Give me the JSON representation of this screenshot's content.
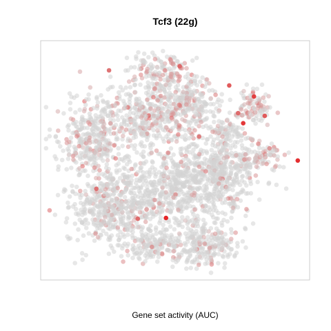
{
  "chart_data": {
    "type": "scatter",
    "title": "Tcf3 (22g)",
    "xlabel": "Gene set activity (AUC)",
    "ylabel": "",
    "xlim": [
      0,
      100
    ],
    "ylim": [
      0,
      100
    ],
    "axes_visible": false,
    "grid": false,
    "legend": "none",
    "color_scale": {
      "low": "#d3d3d3",
      "high": "#e41a1c",
      "meaning": "Gene set activity (AUC)"
    },
    "points_note": "t-SNE embedding of cells; estimated from image",
    "clusters": [
      {
        "cx": 27,
        "cy": 70,
        "rx": 16,
        "ry": 14,
        "activity": 0.12
      },
      {
        "cx": 42,
        "cy": 85,
        "rx": 11,
        "ry": 7,
        "activity": 0.1
      },
      {
        "cx": 62,
        "cy": 85,
        "rx": 12,
        "ry": 9,
        "activity": 0.15
      },
      {
        "cx": 50,
        "cy": 60,
        "rx": 20,
        "ry": 15,
        "activity": 0.08
      },
      {
        "cx": 68,
        "cy": 55,
        "rx": 11,
        "ry": 15,
        "activity": 0.1
      },
      {
        "cx": 20,
        "cy": 40,
        "rx": 12,
        "ry": 13,
        "activity": 0.22
      },
      {
        "cx": 40,
        "cy": 30,
        "rx": 15,
        "ry": 12,
        "activity": 0.2
      },
      {
        "cx": 56,
        "cy": 28,
        "rx": 9,
        "ry": 11,
        "activity": 0.25
      },
      {
        "cx": 45,
        "cy": 13,
        "rx": 9,
        "ry": 7,
        "activity": 0.35
      },
      {
        "cx": 83,
        "cy": 48,
        "rx": 7,
        "ry": 5,
        "activity": 0.42
      },
      {
        "cx": 79,
        "cy": 28,
        "rx": 6,
        "ry": 7,
        "activity": 0.48
      },
      {
        "cx": 69,
        "cy": 37,
        "rx": 6,
        "ry": 5,
        "activity": 0.18
      }
    ],
    "highlight_points": [
      {
        "x": 46.6,
        "y": 74.1,
        "value": 1.0
      },
      {
        "x": 95.6,
        "y": 50.1,
        "value": 0.95
      },
      {
        "x": 75.3,
        "y": 34.5,
        "value": 0.9
      },
      {
        "x": 79.3,
        "y": 23.3,
        "value": 0.85
      },
      {
        "x": 70.1,
        "y": 18.7,
        "value": 0.7
      },
      {
        "x": 51.7,
        "y": 10.7,
        "value": 0.6
      },
      {
        "x": 25.4,
        "y": 12.4,
        "value": 0.55
      },
      {
        "x": 36.1,
        "y": 74.4,
        "value": 0.6
      },
      {
        "x": 20.7,
        "y": 61.9,
        "value": 0.55
      },
      {
        "x": 58.9,
        "y": 40.1,
        "value": 0.5
      },
      {
        "x": 73.4,
        "y": 30.3,
        "value": 0.6
      },
      {
        "x": 83.3,
        "y": 31.4,
        "value": 0.7
      }
    ]
  }
}
